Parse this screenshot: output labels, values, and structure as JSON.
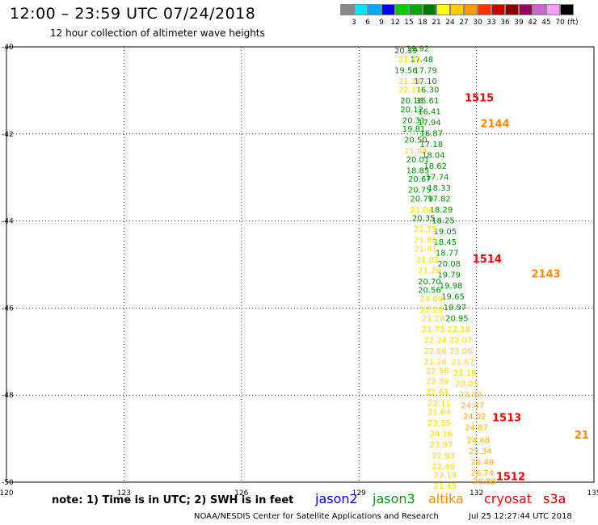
{
  "header": {
    "title": "12:00 – 23:59 UTC 07/24/2018",
    "subtitle": "12 hour collection of altimeter wave heights"
  },
  "legend": {
    "unit": "(ft)",
    "items": [
      {
        "label": "3",
        "color": "#888888"
      },
      {
        "label": "6",
        "color": "#00e5ff"
      },
      {
        "label": "9",
        "color": "#00a8ff"
      },
      {
        "label": "12",
        "color": "#0000ff"
      },
      {
        "label": "15",
        "color": "#00cc00"
      },
      {
        "label": "18",
        "color": "#00aa00"
      },
      {
        "label": "21",
        "color": "#007700"
      },
      {
        "label": "24",
        "color": "#ffff00"
      },
      {
        "label": "27",
        "color": "#ffcc00"
      },
      {
        "label": "30",
        "color": "#ff9900"
      },
      {
        "label": "33",
        "color": "#ff3300"
      },
      {
        "label": "36",
        "color": "#cc0000"
      },
      {
        "label": "39",
        "color": "#880000"
      },
      {
        "label": "42",
        "color": "#990066"
      },
      {
        "label": "45",
        "color": "#cc66cc"
      },
      {
        "label": "70",
        "color": "#ff99ff"
      },
      {
        "label": "",
        "color": "#000000"
      }
    ]
  },
  "map": {
    "lon_labels": [
      "120",
      "123",
      "126",
      "129",
      "132",
      "135"
    ],
    "lat_labels": [
      "-40",
      "-42",
      "-44",
      "-46",
      "-48",
      "-50"
    ],
    "time_labels": [
      {
        "text": "1515",
        "color": "#ee0000",
        "lon": 131.7,
        "lat": -41.25
      },
      {
        "text": "1514",
        "color": "#ee0000",
        "lon": 131.9,
        "lat": -44.95
      },
      {
        "text": "1513",
        "color": "#ee0000",
        "lon": 132.4,
        "lat": -48.6
      },
      {
        "text": "1512",
        "color": "#ee0000",
        "lon": 132.5,
        "lat": -49.95
      },
      {
        "text": "2144",
        "color": "#ff8800",
        "lon": 132.1,
        "lat": -41.85
      },
      {
        "text": "2143",
        "color": "#ff8800",
        "lon": 133.4,
        "lat": -45.3
      },
      {
        "text": "21",
        "color": "#ff8800",
        "lon": 134.5,
        "lat": -49.0
      }
    ],
    "points": [
      {
        "v": "20.39",
        "lon": 130.2,
        "lat": -40.15,
        "c": "#008800"
      },
      {
        "v": "19.92",
        "lon": 130.5,
        "lat": -40.1,
        "c": "#008800"
      },
      {
        "v": "17.48",
        "lon": 130.6,
        "lat": -40.35,
        "c": "#008800"
      },
      {
        "v": "21.41",
        "lon": 130.3,
        "lat": -40.35,
        "c": "#ffd700"
      },
      {
        "v": "17.79",
        "lon": 130.7,
        "lat": -40.6,
        "c": "#008800"
      },
      {
        "v": "19.56",
        "lon": 130.2,
        "lat": -40.6,
        "c": "#008800"
      },
      {
        "v": "17.10",
        "lon": 130.7,
        "lat": -40.85,
        "c": "#008800"
      },
      {
        "v": "21.24",
        "lon": 130.3,
        "lat": -40.85,
        "c": "#ffd700"
      },
      {
        "v": "16.30",
        "lon": 130.75,
        "lat": -41.05,
        "c": "#008800"
      },
      {
        "v": "22.13",
        "lon": 130.3,
        "lat": -41.05,
        "c": "#ffd700"
      },
      {
        "v": "16.61",
        "lon": 130.75,
        "lat": -41.3,
        "c": "#008800"
      },
      {
        "v": "20.16",
        "lon": 130.35,
        "lat": -41.3,
        "c": "#008800"
      },
      {
        "v": "16.41",
        "lon": 130.8,
        "lat": -41.55,
        "c": "#008800"
      },
      {
        "v": "20.12",
        "lon": 130.35,
        "lat": -41.5,
        "c": "#008800"
      },
      {
        "v": "17.94",
        "lon": 130.8,
        "lat": -41.8,
        "c": "#008800"
      },
      {
        "v": "20.31",
        "lon": 130.4,
        "lat": -41.75,
        "c": "#008800"
      },
      {
        "v": "16.87",
        "lon": 130.85,
        "lat": -42.05,
        "c": "#008800"
      },
      {
        "v": "19.81",
        "lon": 130.4,
        "lat": -41.95,
        "c": "#008800"
      },
      {
        "v": "20.50",
        "lon": 130.45,
        "lat": -42.2,
        "c": "#008800"
      },
      {
        "v": "17.18",
        "lon": 130.85,
        "lat": -42.3,
        "c": "#008800"
      },
      {
        "v": "21.04",
        "lon": 130.45,
        "lat": -42.45,
        "c": "#ffd700"
      },
      {
        "v": "18.04",
        "lon": 130.9,
        "lat": -42.55,
        "c": "#008800"
      },
      {
        "v": "20.01",
        "lon": 130.5,
        "lat": -42.65,
        "c": "#008800"
      },
      {
        "v": "18.62",
        "lon": 130.95,
        "lat": -42.8,
        "c": "#008800"
      },
      {
        "v": "18.85",
        "lon": 130.5,
        "lat": -42.9,
        "c": "#008800"
      },
      {
        "v": "17.74",
        "lon": 131.0,
        "lat": -43.05,
        "c": "#008800"
      },
      {
        "v": "20.67",
        "lon": 130.55,
        "lat": -43.1,
        "c": "#008800"
      },
      {
        "v": "18.33",
        "lon": 131.05,
        "lat": -43.3,
        "c": "#008800"
      },
      {
        "v": "20.75",
        "lon": 130.55,
        "lat": -43.35,
        "c": "#008800"
      },
      {
        "v": "17.82",
        "lon": 131.05,
        "lat": -43.55,
        "c": "#008800"
      },
      {
        "v": "20.79",
        "lon": 130.6,
        "lat": -43.55,
        "c": "#008800"
      },
      {
        "v": "18.29",
        "lon": 131.1,
        "lat": -43.8,
        "c": "#008800"
      },
      {
        "v": "21.04",
        "lon": 130.6,
        "lat": -43.8,
        "c": "#ffd700"
      },
      {
        "v": "18.25",
        "lon": 131.15,
        "lat": -44.05,
        "c": "#008800"
      },
      {
        "v": "20.35",
        "lon": 130.65,
        "lat": -44.0,
        "c": "#008800"
      },
      {
        "v": "19.05",
        "lon": 131.2,
        "lat": -44.3,
        "c": "#008800"
      },
      {
        "v": "21.75",
        "lon": 130.7,
        "lat": -44.25,
        "c": "#ffd700"
      },
      {
        "v": "18.45",
        "lon": 131.2,
        "lat": -44.55,
        "c": "#008800"
      },
      {
        "v": "21.86",
        "lon": 130.7,
        "lat": -44.5,
        "c": "#ffd700"
      },
      {
        "v": "18.77",
        "lon": 131.25,
        "lat": -44.8,
        "c": "#008800"
      },
      {
        "v": "21.41",
        "lon": 130.7,
        "lat": -44.7,
        "c": "#ffd700"
      },
      {
        "v": "20.08",
        "lon": 131.3,
        "lat": -45.05,
        "c": "#008800"
      },
      {
        "v": "21.01",
        "lon": 130.75,
        "lat": -44.95,
        "c": "#ffd700"
      },
      {
        "v": "19.79",
        "lon": 131.3,
        "lat": -45.3,
        "c": "#008800"
      },
      {
        "v": "21.20",
        "lon": 130.8,
        "lat": -45.2,
        "c": "#ffd700"
      },
      {
        "v": "19.98",
        "lon": 131.35,
        "lat": -45.55,
        "c": "#008800"
      },
      {
        "v": "20.70",
        "lon": 130.8,
        "lat": -45.45,
        "c": "#008800"
      },
      {
        "v": "19.65",
        "lon": 131.4,
        "lat": -45.8,
        "c": "#008800"
      },
      {
        "v": "20.56",
        "lon": 130.8,
        "lat": -45.65,
        "c": "#008800"
      },
      {
        "v": "19.97",
        "lon": 131.45,
        "lat": -46.05,
        "c": "#008800"
      },
      {
        "v": "24.09",
        "lon": 130.85,
        "lat": -45.85,
        "c": "#ffd700"
      },
      {
        "v": "20.95",
        "lon": 131.5,
        "lat": -46.3,
        "c": "#008800"
      },
      {
        "v": "22.29",
        "lon": 130.85,
        "lat": -46.1,
        "c": "#ffd700"
      },
      {
        "v": "22.18",
        "lon": 131.55,
        "lat": -46.55,
        "c": "#ffd700"
      },
      {
        "v": "21.28",
        "lon": 130.9,
        "lat": -46.3,
        "c": "#ffd700"
      },
      {
        "v": "22.07",
        "lon": 131.6,
        "lat": -46.8,
        "c": "#ffd700"
      },
      {
        "v": "21.75",
        "lon": 130.9,
        "lat": -46.55,
        "c": "#ffd700"
      },
      {
        "v": "23.06",
        "lon": 131.6,
        "lat": -47.05,
        "c": "#ffd700"
      },
      {
        "v": "22.24",
        "lon": 130.95,
        "lat": -46.8,
        "c": "#ffd700"
      },
      {
        "v": "21.67",
        "lon": 131.65,
        "lat": -47.3,
        "c": "#ffd700"
      },
      {
        "v": "22.86",
        "lon": 130.95,
        "lat": -47.05,
        "c": "#ffd700"
      },
      {
        "v": "21.18",
        "lon": 131.7,
        "lat": -47.55,
        "c": "#ffd700"
      },
      {
        "v": "21.26",
        "lon": 130.95,
        "lat": -47.3,
        "c": "#ffd700"
      },
      {
        "v": "23.03",
        "lon": 131.75,
        "lat": -47.8,
        "c": "#ffd700"
      },
      {
        "v": "22.56",
        "lon": 131.0,
        "lat": -47.5,
        "c": "#ffd700"
      },
      {
        "v": "23.88",
        "lon": 131.85,
        "lat": -48.05,
        "c": "#ffd700"
      },
      {
        "v": "22.39",
        "lon": 131.0,
        "lat": -47.75,
        "c": "#ffd700"
      },
      {
        "v": "24.47",
        "lon": 131.9,
        "lat": -48.3,
        "c": "#ffb000"
      },
      {
        "v": "22.61",
        "lon": 131.0,
        "lat": -48.0,
        "c": "#ffd700"
      },
      {
        "v": "24.02",
        "lon": 131.95,
        "lat": -48.55,
        "c": "#ffb000"
      },
      {
        "v": "22.11",
        "lon": 131.05,
        "lat": -48.25,
        "c": "#ffd700"
      },
      {
        "v": "24.87",
        "lon": 132.0,
        "lat": -48.8,
        "c": "#ffb000"
      },
      {
        "v": "21.64",
        "lon": 131.05,
        "lat": -48.45,
        "c": "#ffd700"
      },
      {
        "v": "24.68",
        "lon": 132.05,
        "lat": -49.1,
        "c": "#ffb000"
      },
      {
        "v": "23.35",
        "lon": 131.05,
        "lat": -48.7,
        "c": "#ffd700"
      },
      {
        "v": "25.34",
        "lon": 132.1,
        "lat": -49.35,
        "c": "#ffb000"
      },
      {
        "v": "24.16",
        "lon": 131.1,
        "lat": -48.95,
        "c": "#ffd700"
      },
      {
        "v": "26.49",
        "lon": 132.15,
        "lat": -49.6,
        "c": "#ffb000"
      },
      {
        "v": "23.97",
        "lon": 131.1,
        "lat": -49.2,
        "c": "#ffd700"
      },
      {
        "v": "26.74",
        "lon": 132.15,
        "lat": -49.85,
        "c": "#ffb000"
      },
      {
        "v": "22.93",
        "lon": 131.15,
        "lat": -49.45,
        "c": "#ffd700"
      },
      {
        "v": "26.88",
        "lon": 132.2,
        "lat": -50.05,
        "c": "#ffb000"
      },
      {
        "v": "22.46",
        "lon": 131.15,
        "lat": -49.7,
        "c": "#ffd700"
      },
      {
        "v": "23.19",
        "lon": 131.2,
        "lat": -49.9,
        "c": "#ffd700"
      },
      {
        "v": "21.45",
        "lon": 131.2,
        "lat": -50.15,
        "c": "#ffd700"
      }
    ]
  },
  "footer": {
    "note": "note: 1) Time is in UTC; 2) SWH is in feet",
    "satellites": [
      {
        "name": "jason2",
        "color": "#0000dd"
      },
      {
        "name": "jason3",
        "color": "#009900"
      },
      {
        "name": "altika",
        "color": "#ff8800"
      },
      {
        "name": "cryosat",
        "color": "#ee0000"
      },
      {
        "name": "s3a",
        "color": "#aa0000"
      }
    ],
    "credit": "NOAA/NESDIS Center for Satellite Applications and Research",
    "timestamp": "Jul 25 12:27:44 UTC 2018"
  }
}
